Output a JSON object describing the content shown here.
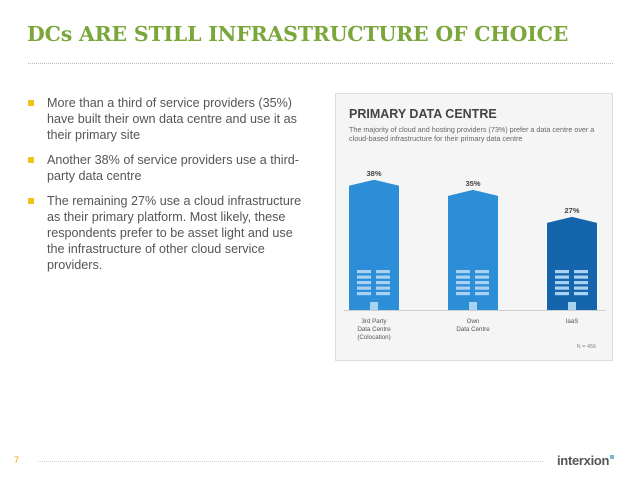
{
  "slide": {
    "title": "DCs ARE STILL INFRASTRUCTURE OF CHOICE",
    "page_number": "7",
    "logo_text": "interxion"
  },
  "bullets": [
    "More than a third of service providers (35%) have built their own data centre and use it as their primary site",
    "Another 38% of service providers use a third-party data centre",
    "The remaining 27% use a cloud infrastructure as their primary platform. Most likely, these respondents prefer to be asset light and use the infrastructure of other cloud service providers."
  ],
  "colors": {
    "title": "#7aa63a",
    "bullet": "#f0c419",
    "bar_light": "#2c8ed6",
    "bar_dark": "#1565ad"
  },
  "chart_data": {
    "type": "bar",
    "title": "PRIMARY DATA CENTRE",
    "subtitle": "The majority of cloud and hosting providers (73%) prefer a data centre over a cloud-based infrastructure for their primary data centre",
    "categories": [
      [
        "3rd Party",
        "Data Centre",
        "(Colocation)"
      ],
      [
        "Own",
        "Data Centre"
      ],
      [
        "IaaS"
      ]
    ],
    "values": [
      38,
      35,
      27
    ],
    "data_labels": [
      "38%",
      "35%",
      "27%"
    ],
    "note": "N = 456",
    "ylim": [
      0,
      40
    ],
    "grid": false,
    "legend": "none"
  }
}
